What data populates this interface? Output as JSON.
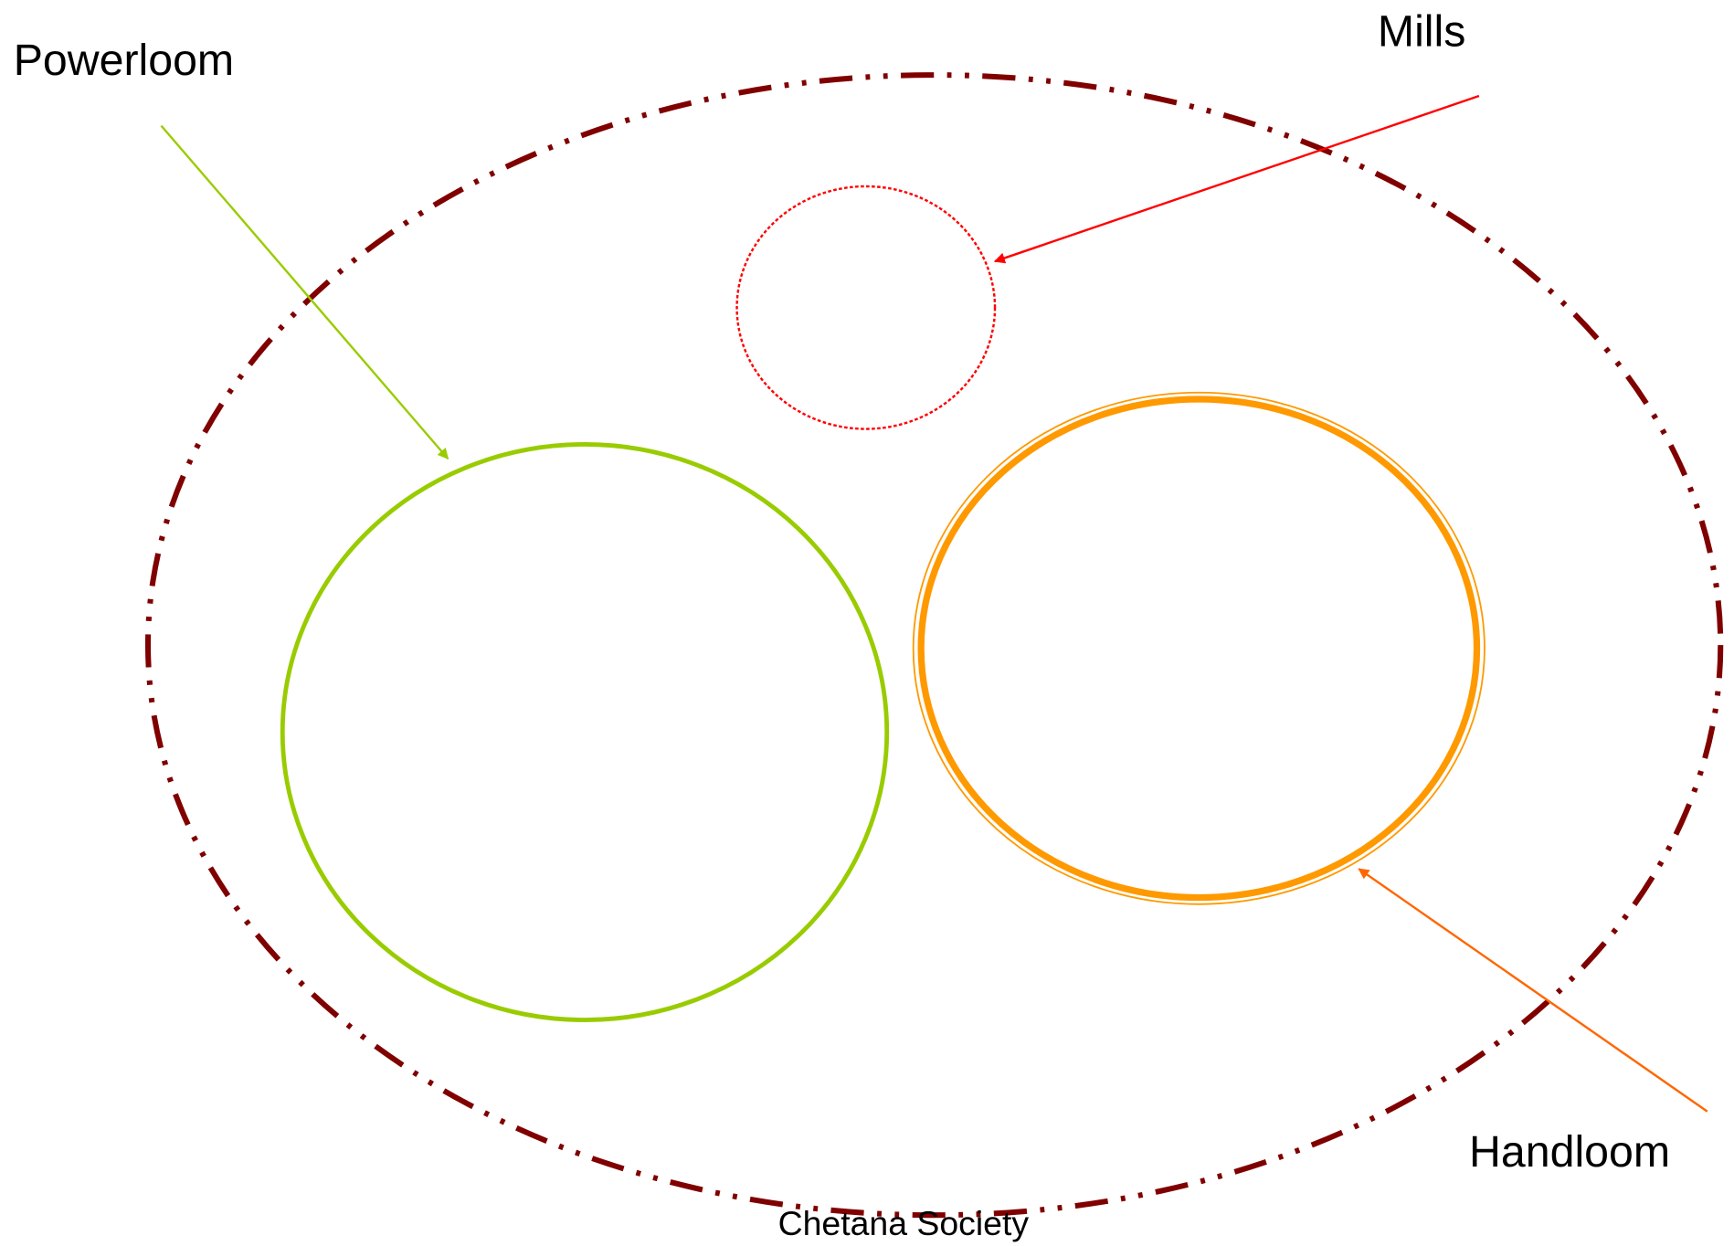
{
  "labels": {
    "powerloom": "Powerloom",
    "mills": "Mills",
    "handloom": "Handloom",
    "society": "Chetana Society"
  }
}
